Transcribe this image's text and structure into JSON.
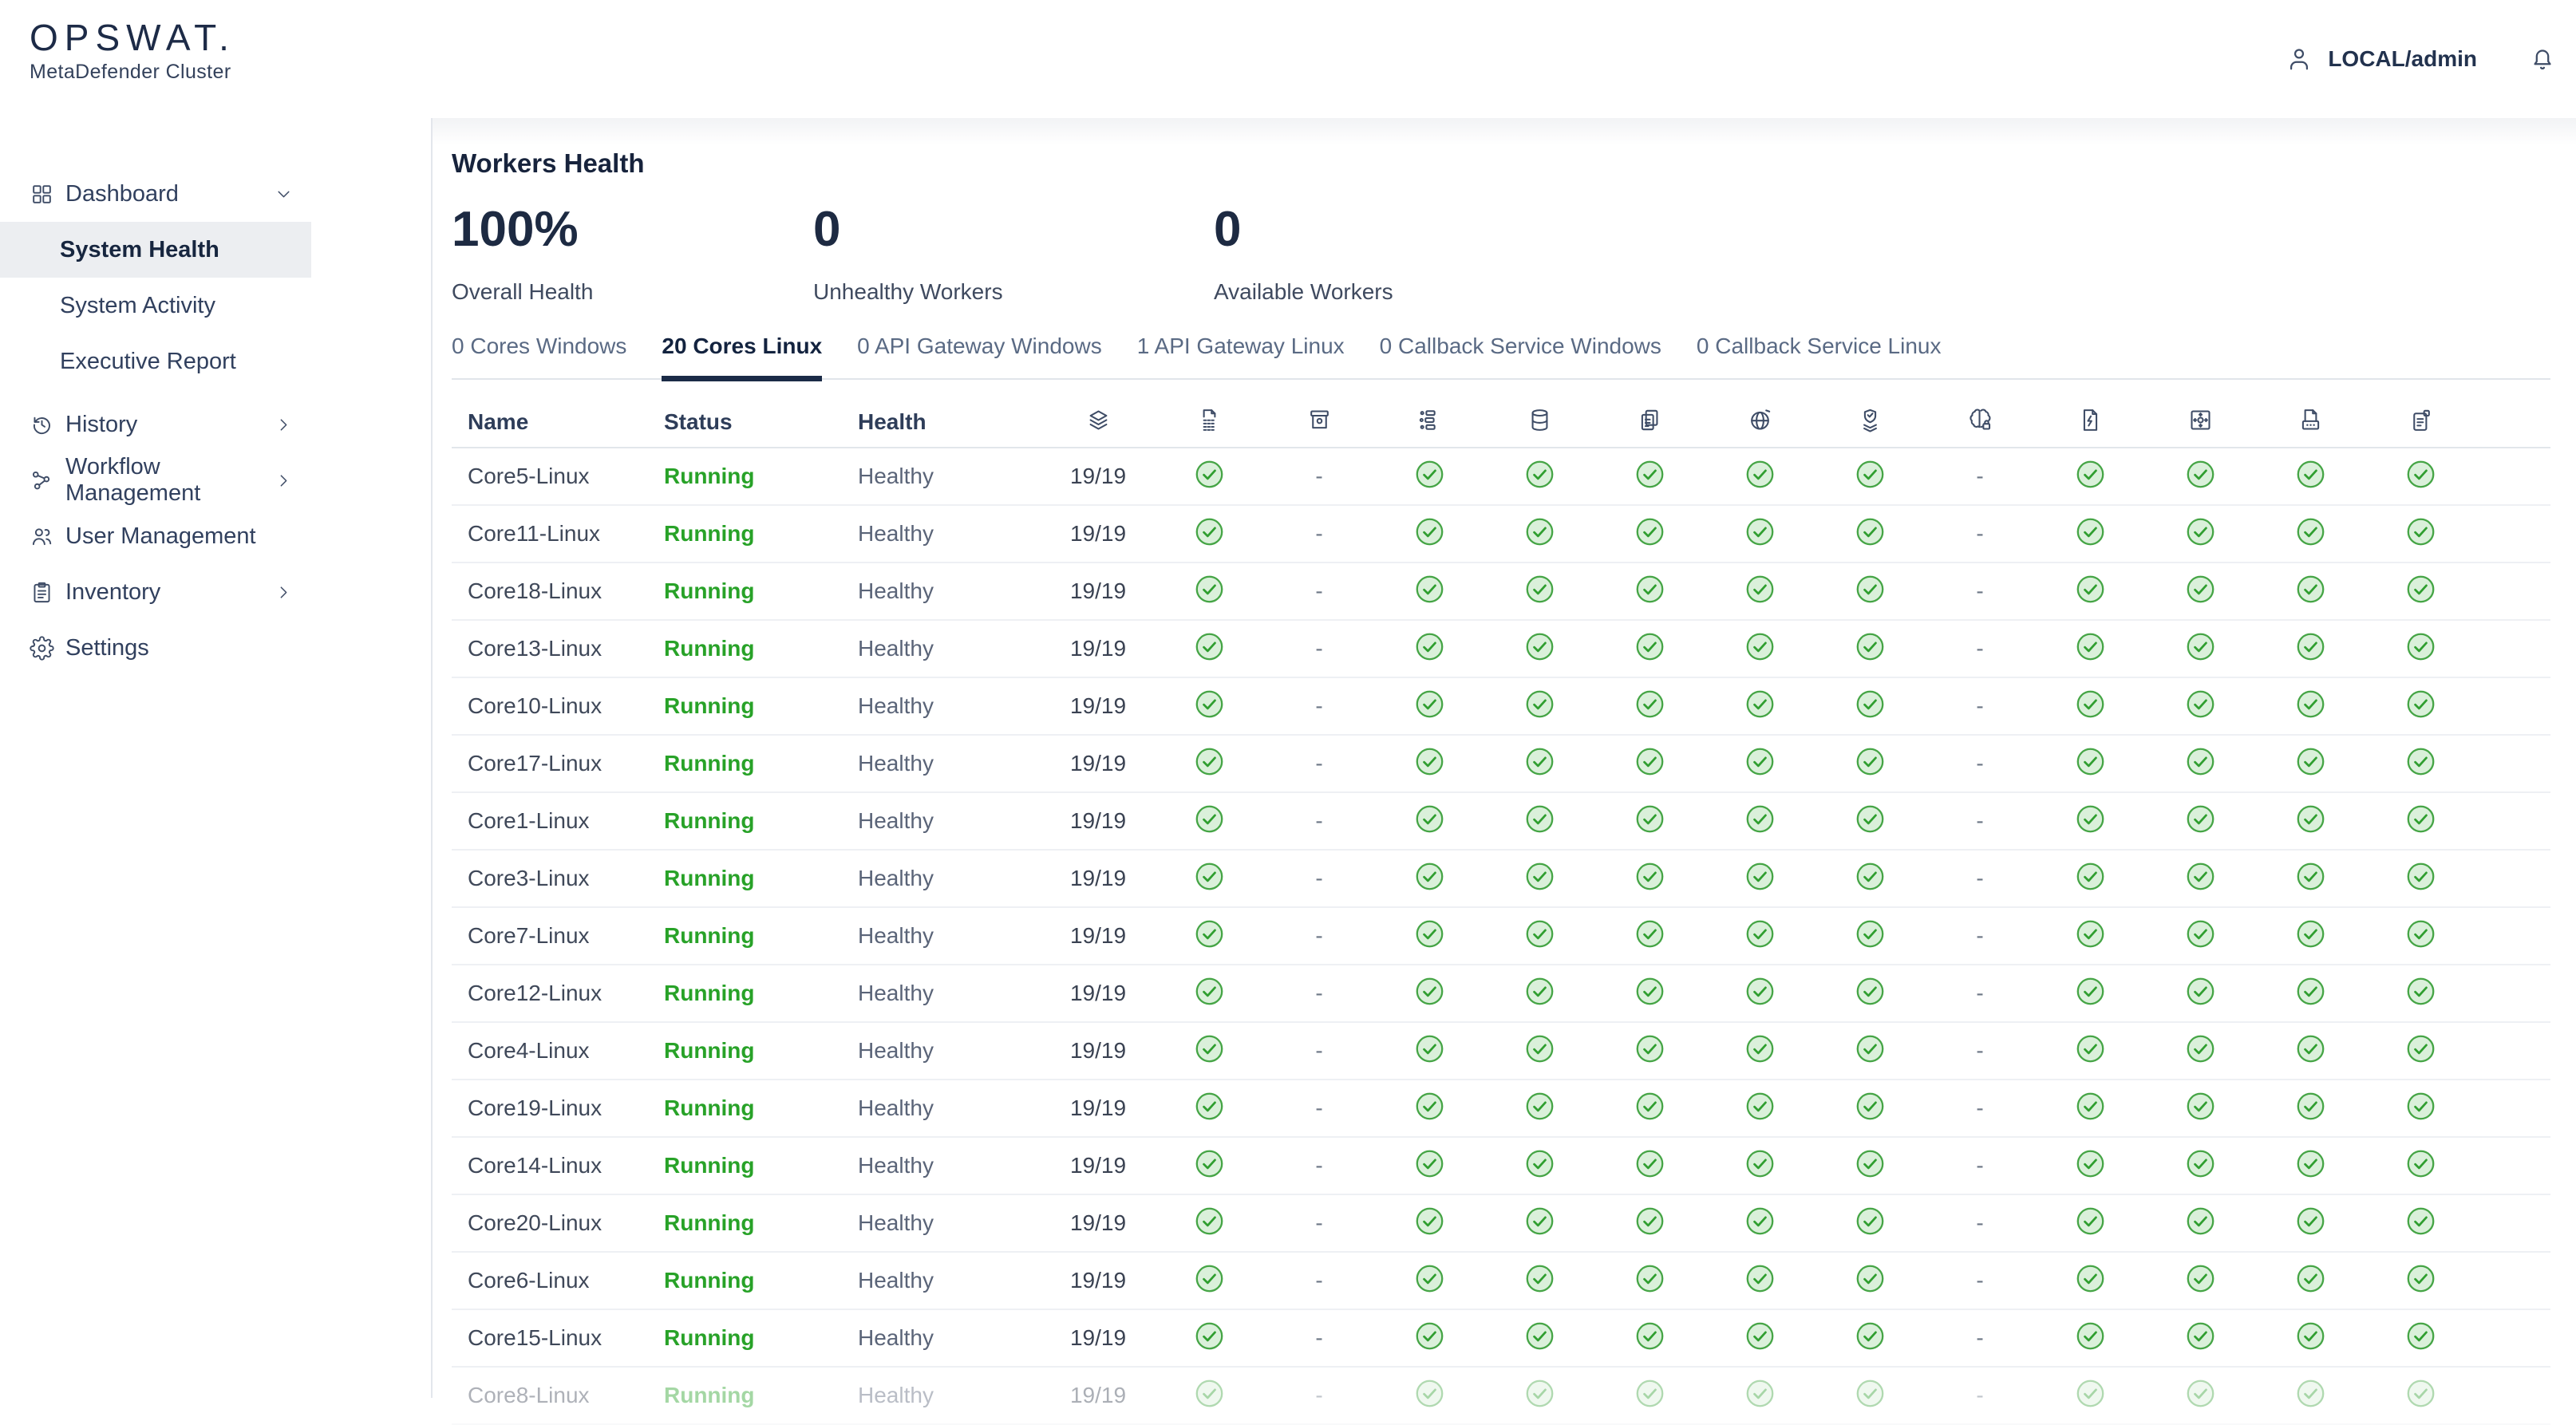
{
  "colors": {
    "accent_green": "#28a228",
    "check_fill": "#daf0da",
    "check_border": "#46a546",
    "navy": "#1b2b47"
  },
  "header": {
    "logo_title": "OPSWAT.",
    "logo_subtitle": "MetaDefender Cluster",
    "username": "LOCAL/admin",
    "icons": [
      "person-icon",
      "bell-icon"
    ]
  },
  "sidebar": {
    "items": [
      {
        "label": "Dashboard",
        "icon": "grid-icon",
        "chevron": "down",
        "expanded": true
      },
      {
        "label": "System Health",
        "child": true,
        "selected": true
      },
      {
        "label": "System Activity",
        "child": true
      },
      {
        "label": "Executive Report",
        "child": true
      },
      {
        "label": "History",
        "icon": "history-icon",
        "chevron": "right"
      },
      {
        "label": "Workflow Management",
        "icon": "workflow-mgmt-icon",
        "chevron": "right"
      },
      {
        "label": "User Management",
        "icon": "users-icon"
      },
      {
        "label": "Inventory",
        "icon": "clipboard-icon",
        "chevron": "right"
      },
      {
        "label": "Settings",
        "icon": "gear-icon"
      }
    ]
  },
  "workers": {
    "title": "Workers Health",
    "stats": [
      {
        "value": "100%",
        "label": "Overall Health"
      },
      {
        "value": "0",
        "label": "Unhealthy Workers"
      },
      {
        "value": "0",
        "label": "Available Workers"
      }
    ],
    "tabs": [
      {
        "label": "0 Cores Windows"
      },
      {
        "label": "20 Cores Linux",
        "active": true
      },
      {
        "label": "0 API Gateway Windows"
      },
      {
        "label": "1 API Gateway Linux"
      },
      {
        "label": "0 Callback Service Windows"
      },
      {
        "label": "0 Callback Service Linux"
      }
    ],
    "table": {
      "text_columns": [
        "Name",
        "Status",
        "Health"
      ],
      "icon_columns": [
        "layers-icon",
        "file-binary-icon",
        "archive-box-icon",
        "workflow-nodes-icon",
        "database-icon",
        "copy-files-icon",
        "globe-icon",
        "shield-stack-icon",
        "brain-icon",
        "file-lightning-icon",
        "sandbox-icon",
        "file-scan-icon",
        "scroll-icon"
      ],
      "rows": [
        {
          "name": "Core5-Linux",
          "status": "Running",
          "health": "Healthy",
          "engines": "19/19",
          "cells": [
            "ok",
            "-",
            "ok",
            "ok",
            "ok",
            "ok",
            "ok",
            "-",
            "ok",
            "ok",
            "ok",
            "ok"
          ]
        },
        {
          "name": "Core11-Linux",
          "status": "Running",
          "health": "Healthy",
          "engines": "19/19",
          "cells": [
            "ok",
            "-",
            "ok",
            "ok",
            "ok",
            "ok",
            "ok",
            "-",
            "ok",
            "ok",
            "ok",
            "ok"
          ]
        },
        {
          "name": "Core18-Linux",
          "status": "Running",
          "health": "Healthy",
          "engines": "19/19",
          "cells": [
            "ok",
            "-",
            "ok",
            "ok",
            "ok",
            "ok",
            "ok",
            "-",
            "ok",
            "ok",
            "ok",
            "ok"
          ]
        },
        {
          "name": "Core13-Linux",
          "status": "Running",
          "health": "Healthy",
          "engines": "19/19",
          "cells": [
            "ok",
            "-",
            "ok",
            "ok",
            "ok",
            "ok",
            "ok",
            "-",
            "ok",
            "ok",
            "ok",
            "ok"
          ]
        },
        {
          "name": "Core10-Linux",
          "status": "Running",
          "health": "Healthy",
          "engines": "19/19",
          "cells": [
            "ok",
            "-",
            "ok",
            "ok",
            "ok",
            "ok",
            "ok",
            "-",
            "ok",
            "ok",
            "ok",
            "ok"
          ]
        },
        {
          "name": "Core17-Linux",
          "status": "Running",
          "health": "Healthy",
          "engines": "19/19",
          "cells": [
            "ok",
            "-",
            "ok",
            "ok",
            "ok",
            "ok",
            "ok",
            "-",
            "ok",
            "ok",
            "ok",
            "ok"
          ]
        },
        {
          "name": "Core1-Linux",
          "status": "Running",
          "health": "Healthy",
          "engines": "19/19",
          "cells": [
            "ok",
            "-",
            "ok",
            "ok",
            "ok",
            "ok",
            "ok",
            "-",
            "ok",
            "ok",
            "ok",
            "ok"
          ]
        },
        {
          "name": "Core3-Linux",
          "status": "Running",
          "health": "Healthy",
          "engines": "19/19",
          "cells": [
            "ok",
            "-",
            "ok",
            "ok",
            "ok",
            "ok",
            "ok",
            "-",
            "ok",
            "ok",
            "ok",
            "ok"
          ]
        },
        {
          "name": "Core7-Linux",
          "status": "Running",
          "health": "Healthy",
          "engines": "19/19",
          "cells": [
            "ok",
            "-",
            "ok",
            "ok",
            "ok",
            "ok",
            "ok",
            "-",
            "ok",
            "ok",
            "ok",
            "ok"
          ]
        },
        {
          "name": "Core12-Linux",
          "status": "Running",
          "health": "Healthy",
          "engines": "19/19",
          "cells": [
            "ok",
            "-",
            "ok",
            "ok",
            "ok",
            "ok",
            "ok",
            "-",
            "ok",
            "ok",
            "ok",
            "ok"
          ]
        },
        {
          "name": "Core4-Linux",
          "status": "Running",
          "health": "Healthy",
          "engines": "19/19",
          "cells": [
            "ok",
            "-",
            "ok",
            "ok",
            "ok",
            "ok",
            "ok",
            "-",
            "ok",
            "ok",
            "ok",
            "ok"
          ]
        },
        {
          "name": "Core19-Linux",
          "status": "Running",
          "health": "Healthy",
          "engines": "19/19",
          "cells": [
            "ok",
            "-",
            "ok",
            "ok",
            "ok",
            "ok",
            "ok",
            "-",
            "ok",
            "ok",
            "ok",
            "ok"
          ]
        },
        {
          "name": "Core14-Linux",
          "status": "Running",
          "health": "Healthy",
          "engines": "19/19",
          "cells": [
            "ok",
            "-",
            "ok",
            "ok",
            "ok",
            "ok",
            "ok",
            "-",
            "ok",
            "ok",
            "ok",
            "ok"
          ]
        },
        {
          "name": "Core20-Linux",
          "status": "Running",
          "health": "Healthy",
          "engines": "19/19",
          "cells": [
            "ok",
            "-",
            "ok",
            "ok",
            "ok",
            "ok",
            "ok",
            "-",
            "ok",
            "ok",
            "ok",
            "ok"
          ]
        },
        {
          "name": "Core6-Linux",
          "status": "Running",
          "health": "Healthy",
          "engines": "19/19",
          "cells": [
            "ok",
            "-",
            "ok",
            "ok",
            "ok",
            "ok",
            "ok",
            "-",
            "ok",
            "ok",
            "ok",
            "ok"
          ]
        },
        {
          "name": "Core15-Linux",
          "status": "Running",
          "health": "Healthy",
          "engines": "19/19",
          "cells": [
            "ok",
            "-",
            "ok",
            "ok",
            "ok",
            "ok",
            "ok",
            "-",
            "ok",
            "ok",
            "ok",
            "ok"
          ]
        },
        {
          "name": "Core8-Linux",
          "status": "Running",
          "health": "Healthy",
          "engines": "19/19",
          "faded": true,
          "cells": [
            "ok",
            "-",
            "ok",
            "ok",
            "ok",
            "ok",
            "ok",
            "-",
            "ok",
            "ok",
            "ok",
            "ok"
          ]
        }
      ]
    }
  }
}
